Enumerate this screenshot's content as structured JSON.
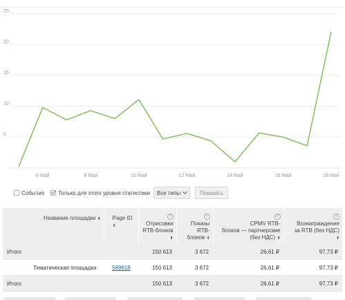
{
  "chart_data": {
    "type": "line",
    "title": "",
    "xlabel": "",
    "ylabel": "",
    "ylim": [
      0,
      25
    ],
    "yticks": [
      5,
      10,
      15,
      20,
      25
    ],
    "x_tick_labels": [
      "6 Май",
      "8 Май",
      "10 Май",
      "12 Май",
      "14 Май",
      "16 Май",
      "18 Май"
    ],
    "x": [
      "5 Май",
      "6 Май",
      "7 Май",
      "8 Май",
      "9 Май",
      "10 Май",
      "11 Май",
      "12 Май",
      "13 Май",
      "14 Май",
      "15 Май",
      "16 Май",
      "17 Май",
      "18 Май"
    ],
    "series": [
      {
        "values": [
          0.2,
          9.8,
          7.8,
          9.3,
          8.0,
          11.1,
          4.7,
          5.6,
          4.4,
          1.0,
          5.7,
          5.0,
          3.6,
          22.1
        ],
        "color": "#8ac063"
      }
    ],
    "grid": "horizontal"
  },
  "controls": {
    "events_label": "События",
    "events_checked": false,
    "only_level_label": "Только для этого уровня статистики",
    "only_level_checked": true,
    "types_dropdown_label": "Все типы",
    "show_button_label": "Показать"
  },
  "table": {
    "headers": {
      "name": "Название площадки",
      "page_id": "Page ID",
      "renders_l1": "Отрисовки",
      "renders_l2": "RTB-блоков",
      "shows_l1": "Показы",
      "shows_l2": "RTB-",
      "shows_l3": "блоков",
      "cpmv_l1": "CPMV RTB-",
      "cpmv_l2": "блоков — партнерские",
      "cpmv_l3": "(без НДС)",
      "reward_l1": "Вознаграждение",
      "reward_l2": "за RTB (без НДС)",
      "help": "?",
      "sort": "⬍"
    },
    "rows": [
      {
        "name": "Итого",
        "page_id": "",
        "renders": "150 613",
        "shows": "3 672",
        "cpmv": "26,61 ₽",
        "reward": "97,73 ₽",
        "type": "total"
      },
      {
        "name": "Тематическая площадка",
        "page_id": "569618",
        "renders": "150 613",
        "shows": "3 672",
        "cpmv": "26,61 ₽",
        "reward": "97,73 ₽",
        "type": "row"
      },
      {
        "name": "Итого",
        "page_id": "",
        "renders": "150 613",
        "shows": "3 672",
        "cpmv": "26,61 ₽",
        "reward": "97,73 ₽",
        "type": "total"
      }
    ]
  }
}
